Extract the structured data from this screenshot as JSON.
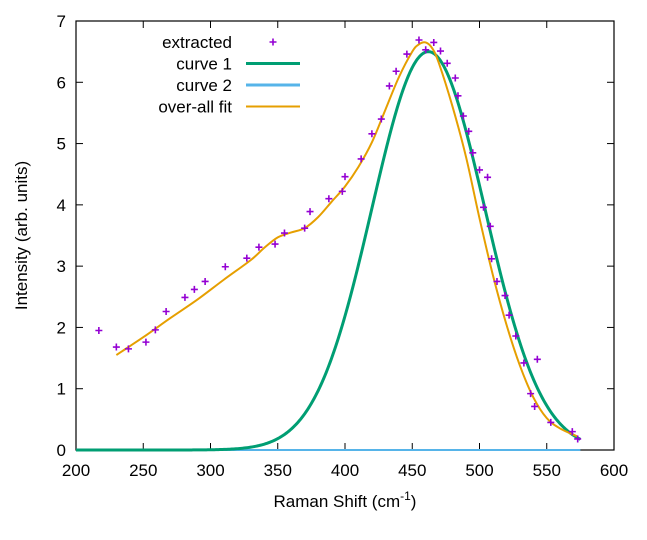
{
  "chart_data": {
    "type": "scatter",
    "xlabel": "Raman Shift (cm",
    "xlabel_sup": "-1",
    "xlabel_suffix": ")",
    "ylabel": "Intensity (arb. units)",
    "xlim": [
      200,
      600
    ],
    "ylim": [
      0,
      7
    ],
    "xticks": [
      200,
      250,
      300,
      350,
      400,
      450,
      500,
      550,
      600
    ],
    "yticks": [
      0,
      1,
      2,
      3,
      4,
      5,
      6,
      7
    ],
    "grid": false,
    "legend_position": "top-left",
    "series": [
      {
        "name": "extracted",
        "kind": "points",
        "marker": "plus",
        "color": "#9400d3",
        "x": [
          217,
          230,
          239,
          252,
          259,
          267,
          281,
          288,
          296,
          311,
          327,
          336,
          348,
          355,
          370,
          374,
          388,
          398,
          400,
          412,
          420,
          427,
          433,
          438,
          446,
          455,
          460,
          466,
          471,
          476,
          482,
          484,
          488,
          492,
          495,
          500,
          503,
          506,
          508,
          509,
          513,
          519,
          522,
          527,
          533,
          538,
          541,
          543,
          553,
          569,
          573
        ],
        "y": [
          1.95,
          1.68,
          1.65,
          1.76,
          1.96,
          2.26,
          2.49,
          2.62,
          2.75,
          2.99,
          3.13,
          3.31,
          3.36,
          3.54,
          3.62,
          3.89,
          4.1,
          4.22,
          4.46,
          4.75,
          5.16,
          5.4,
          5.94,
          6.18,
          6.46,
          6.69,
          6.53,
          6.65,
          6.51,
          6.31,
          6.07,
          5.78,
          5.45,
          5.2,
          4.85,
          4.57,
          3.96,
          4.45,
          3.65,
          3.12,
          2.75,
          2.52,
          2.2,
          1.86,
          1.42,
          0.92,
          0.71,
          1.48,
          0.45,
          0.3,
          0.18
        ]
      },
      {
        "name": "curve 1",
        "kind": "line",
        "color": "#009e73",
        "function": "gaussian",
        "amplitude": 6.5,
        "center": 462,
        "sigma": 42,
        "x_range": [
          200,
          575
        ]
      },
      {
        "name": "curve 2",
        "kind": "line",
        "color": "#56b4e9",
        "function": "constant",
        "value": 0,
        "x_range": [
          200,
          575
        ]
      },
      {
        "name": "over-all fit",
        "kind": "line",
        "color": "#e69f00",
        "x": [
          230,
          250,
          270,
          290,
          310,
          330,
          340,
          350,
          360,
          370,
          380,
          390,
          400,
          410,
          420,
          430,
          440,
          450,
          455,
          460,
          465,
          470,
          480,
          490,
          500,
          510,
          520,
          530,
          540,
          550,
          560,
          573
        ],
        "y": [
          1.55,
          1.84,
          2.15,
          2.45,
          2.78,
          3.1,
          3.3,
          3.47,
          3.55,
          3.62,
          3.8,
          4.05,
          4.3,
          4.62,
          5.02,
          5.55,
          6.08,
          6.5,
          6.62,
          6.65,
          6.55,
          6.3,
          5.6,
          4.78,
          3.78,
          2.85,
          2.05,
          1.38,
          0.86,
          0.52,
          0.35,
          0.22
        ]
      }
    ]
  }
}
